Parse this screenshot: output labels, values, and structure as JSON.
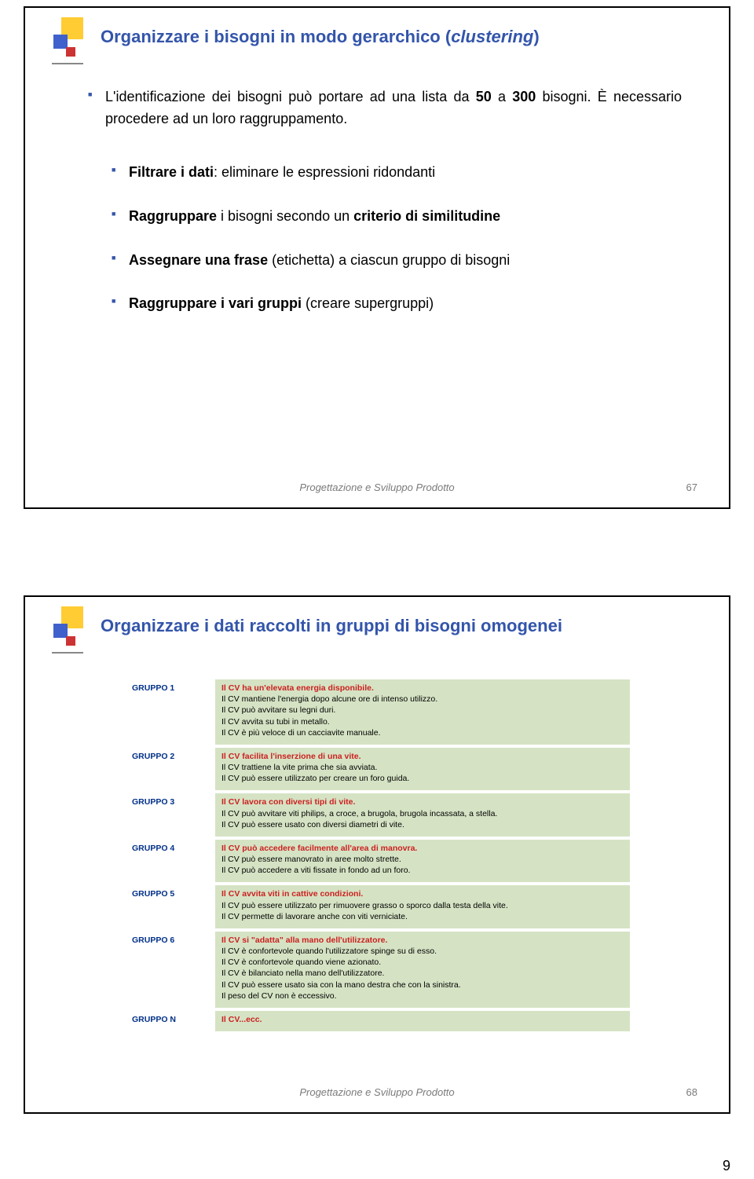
{
  "slide1": {
    "title_pre": "Organizzare i bisogni in modo gerarchico (",
    "title_ital": "clustering",
    "title_post": ")",
    "para1_a": "L'identificazione dei bisogni può portare ad una lista da ",
    "para1_b": "50",
    "para1_c": " a ",
    "para1_d": "300",
    "para1_e": " bisogni.",
    "para1_f": " È necessario procedere ad un loro raggruppamento.",
    "bul2_a": "Filtrare i dati",
    "bul2_b": ": eliminare le espressioni ridondanti",
    "bul3_a": "Raggruppare",
    "bul3_b": " i bisogni secondo un ",
    "bul3_c": "criterio di similitudine",
    "bul4_a": "Assegnare una frase",
    "bul4_b": " (etichetta) a ciascun gruppo di bisogni",
    "bul5_a": "Raggruppare i vari gruppi",
    "bul5_b": " (creare supergruppi)",
    "footer": "Progettazione e Sviluppo Prodotto",
    "page": "67"
  },
  "slide2": {
    "title": "Organizzare i dati raccolti in gruppi di bisogni omogenei",
    "footer": "Progettazione e Sviluppo Prodotto",
    "page": "68",
    "groups": {
      "g1": {
        "label": "GRUPPO 1",
        "head": "Il CV ha un'elevata energia disponibile.",
        "lines": [
          "Il CV mantiene l'energia dopo alcune ore di intenso utilizzo.",
          "Il CV può avvitare su legni duri.",
          "Il CV avvita su tubi in metallo.",
          "Il CV è più veloce di un cacciavite manuale."
        ]
      },
      "g2": {
        "label": "GRUPPO 2",
        "head": "Il CV facilita l'inserzione di una vite.",
        "lines": [
          "Il CV trattiene la vite prima che sia avviata.",
          "Il CV può essere utilizzato per creare un foro guida."
        ]
      },
      "g3": {
        "label": "GRUPPO 3",
        "head": "Il CV lavora con diversi tipi di vite.",
        "lines": [
          "Il CV può avvitare viti philips, a croce, a brugola, brugola incassata, a stella.",
          "Il CV può essere usato con diversi diametri di vite."
        ]
      },
      "g4": {
        "label": "GRUPPO 4",
        "head": "Il CV può accedere facilmente all'area di manovra.",
        "lines": [
          "Il CV può essere manovrato in aree molto strette.",
          "Il CV può accedere a viti fissate in fondo ad un foro."
        ]
      },
      "g5": {
        "label": "GRUPPO 5",
        "head": "Il CV avvita viti in cattive condizioni.",
        "lines": [
          "Il CV può essere utilizzato per rimuovere grasso o sporco dalla testa della vite.",
          "Il CV permette di lavorare anche con viti verniciate."
        ]
      },
      "g6": {
        "label": "GRUPPO 6",
        "head": "Il CV si \"adatta\" alla mano dell'utilizzatore.",
        "lines": [
          "Il CV è confortevole quando l'utilizzatore spinge su di esso.",
          "Il CV è confortevole quando viene azionato.",
          "Il CV è bilanciato nella mano dell'utilizzatore.",
          "Il CV può essere usato sia con la mano destra che con la sinistra.",
          "Il peso del CV non è eccessivo."
        ]
      },
      "gN": {
        "label": "GRUPPO N",
        "head": "Il CV...ecc.",
        "lines": []
      }
    }
  },
  "doc_page": "9"
}
